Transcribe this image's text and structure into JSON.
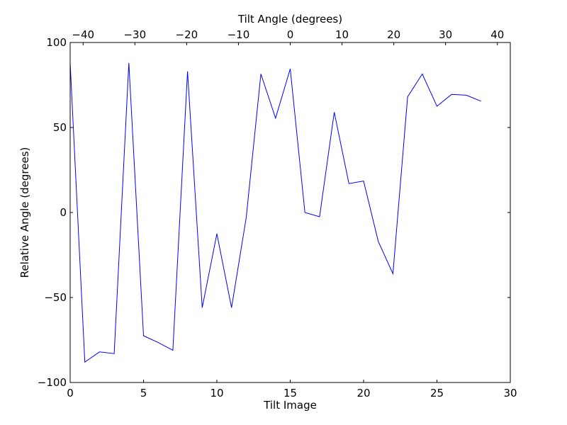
{
  "chart_data": {
    "type": "line",
    "xlabel": "Tilt Image",
    "ylabel": "Relative Angle (degrees)",
    "x2label": "Tilt Angle (degrees)",
    "xlim": [
      0,
      30
    ],
    "ylim": [
      -100,
      100
    ],
    "x2lim": [
      -42.5,
      42.5
    ],
    "grid": false,
    "x_ticks": [
      0,
      5,
      10,
      15,
      20,
      25,
      30
    ],
    "x_tick_labels": [
      "0",
      "5",
      "10",
      "15",
      "20",
      "25",
      "30"
    ],
    "y_ticks": [
      -100,
      -50,
      0,
      50,
      100
    ],
    "y_tick_labels": [
      "−100",
      "−50",
      "0",
      "50",
      "100"
    ],
    "x2_ticks": [
      -40,
      -30,
      -20,
      -10,
      0,
      10,
      20,
      30,
      40
    ],
    "x2_tick_labels": [
      "−40",
      "−30",
      "−20",
      "−10",
      "0",
      "10",
      "20",
      "30",
      "40"
    ],
    "series": [
      {
        "color": "#0000ff",
        "x": [
          0,
          1,
          2,
          3,
          4,
          5,
          6,
          7,
          8,
          9,
          10,
          11,
          12,
          13,
          14,
          15,
          16,
          17,
          18,
          19,
          20,
          21,
          22,
          23,
          24,
          25,
          26,
          27,
          28
        ],
        "y": [
          88,
          -88,
          -82,
          -83,
          88,
          -72.5,
          -76.5,
          -81,
          83,
          -56,
          -12.5,
          -56,
          -3,
          81.5,
          55.5,
          84.5,
          0,
          -2.5,
          59,
          17,
          18.5,
          -17,
          -36,
          68,
          81.5,
          62.5,
          69.5,
          69,
          65.5
        ]
      }
    ]
  }
}
